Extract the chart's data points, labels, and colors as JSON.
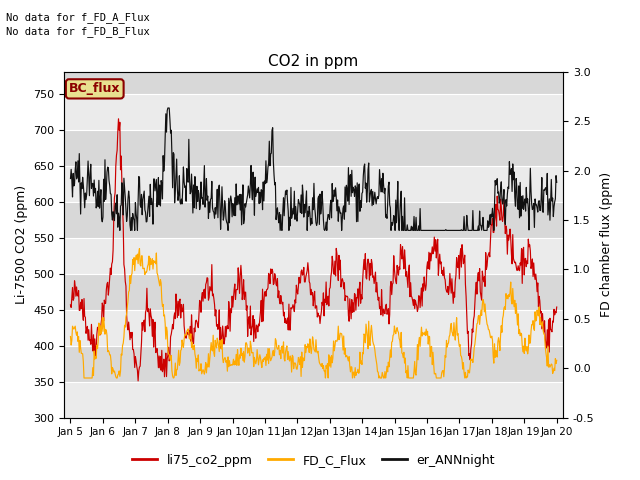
{
  "title": "CO2 in ppm",
  "ylabel_left": "Li-7500 CO2 (ppm)",
  "ylabel_right": "FD chamber flux (ppm)",
  "text_annotations": [
    "No data for f_FD_A_Flux",
    "No data for f_FD_B_Flux"
  ],
  "legend_box_label": "BC_flux",
  "legend_box_color": "#e8e090",
  "legend_box_edge": "#8b0000",
  "ylim_left": [
    300,
    780
  ],
  "ylim_right": [
    -0.5,
    3.0
  ],
  "xtick_labels": [
    "Jan 5",
    "Jan 6",
    "Jan 7",
    "Jan 8",
    "Jan 9",
    "Jan 10",
    "Jan 11",
    "Jan 12",
    "Jan 13",
    "Jan 14",
    "Jan 15",
    "Jan 16",
    "Jan 17",
    "Jan 18",
    "Jan 19",
    "Jan 20"
  ],
  "ytick_left": [
    300,
    350,
    400,
    450,
    500,
    550,
    600,
    650,
    700,
    750
  ],
  "ytick_right": [
    -0.5,
    0.0,
    0.5,
    1.0,
    1.5,
    2.0,
    2.5,
    3.0
  ],
  "color_red": "#cc0000",
  "color_orange": "#ffaa00",
  "color_black": "#111111",
  "legend_entries": [
    "li75_co2_ppm",
    "FD_C_Flux",
    "er_ANNnight"
  ],
  "bg_band_color": "#d8d8d8",
  "white_band_color": "#f0f0f0",
  "fig_bg": "#ffffff",
  "seed": 42
}
